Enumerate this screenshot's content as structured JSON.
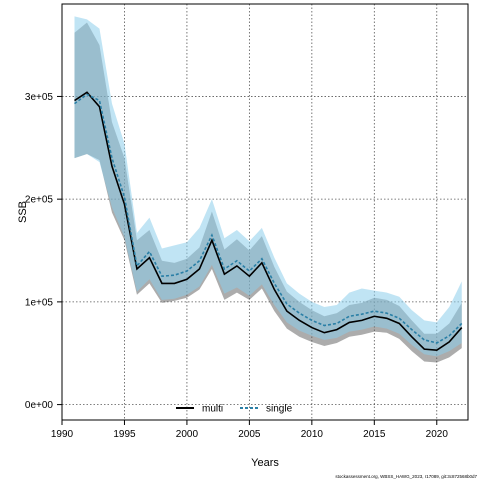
{
  "chart_data": {
    "type": "line",
    "xlabel": "Years",
    "ylabel": "SSB",
    "xlim": [
      1990,
      2022.5
    ],
    "ylim": [
      -15000,
      390000
    ],
    "x_ticks": [
      1990,
      1995,
      2000,
      2005,
      2010,
      2015,
      2020
    ],
    "y_ticks": [
      0,
      100000,
      200000,
      300000
    ],
    "y_tick_labels": [
      "0e+00",
      "1e+05",
      "2e+05",
      "3e+05"
    ],
    "grid": true,
    "legend_position": "bottom-center",
    "source": "stockassessment.org, WBSS_HAWG_2023, r17089, git:3c872568b0d7",
    "x": [
      1991,
      1992,
      1993,
      1994,
      1995,
      1996,
      1997,
      1998,
      1999,
      2000,
      2001,
      2002,
      2003,
      2004,
      2005,
      2006,
      2007,
      2008,
      2009,
      2010,
      2011,
      2012,
      2013,
      2014,
      2015,
      2016,
      2017,
      2018,
      2019,
      2020,
      2021,
      2022
    ],
    "series": [
      {
        "name": "multi",
        "color": "#000000",
        "band_color": "#5a5a5a",
        "values": [
          296000,
          304000,
          290000,
          232000,
          195000,
          132000,
          143000,
          118000,
          118000,
          122000,
          132000,
          160000,
          127000,
          135000,
          125000,
          138000,
          112000,
          91000,
          82000,
          75000,
          70000,
          73000,
          80000,
          82000,
          86000,
          84000,
          79000,
          66000,
          54000,
          53000,
          61000,
          75000
        ],
        "lower": [
          240000,
          244000,
          238000,
          187000,
          160000,
          107000,
          118000,
          99000,
          101000,
          104000,
          112000,
          132000,
          102000,
          109000,
          102000,
          113000,
          91000,
          74000,
          66000,
          61000,
          57000,
          60000,
          66000,
          68000,
          71000,
          70000,
          64000,
          52000,
          42000,
          41000,
          46000,
          55000
        ],
        "upper": [
          362000,
          372000,
          350000,
          275000,
          240000,
          160000,
          170000,
          140000,
          138000,
          142000,
          153000,
          188000,
          151000,
          161000,
          150000,
          164000,
          134000,
          110000,
          100000,
          92000,
          86000,
          89000,
          97000,
          99000,
          104000,
          102000,
          96000,
          82000,
          69000,
          69000,
          79000,
          99000
        ]
      },
      {
        "name": "single",
        "color": "#2a7fa6",
        "band_color": "#8ccdeb",
        "values": [
          293000,
          302000,
          296000,
          240000,
          202000,
          135000,
          149000,
          125000,
          126000,
          130000,
          140000,
          165000,
          132000,
          140000,
          130000,
          142000,
          118000,
          98000,
          89000,
          82000,
          77000,
          79000,
          86000,
          88000,
          91000,
          89000,
          84000,
          73000,
          63000,
          60000,
          67000,
          79000
        ],
        "lower": [
          240000,
          244000,
          236000,
          192000,
          163000,
          110000,
          122000,
          102000,
          103000,
          107000,
          115000,
          136000,
          108000,
          114000,
          106000,
          117000,
          97000,
          80000,
          72000,
          67000,
          63000,
          65000,
          71000,
          73000,
          76000,
          74000,
          69000,
          58000,
          49000,
          47000,
          52000,
          60000
        ],
        "upper": [
          378000,
          375000,
          366000,
          293000,
          254000,
          167000,
          182000,
          152000,
          155000,
          158000,
          172000,
          200000,
          162000,
          170000,
          159000,
          172000,
          143000,
          118000,
          108000,
          100000,
          95000,
          97000,
          109000,
          113000,
          111000,
          109000,
          105000,
          92000,
          82000,
          80000,
          95000,
          120000
        ]
      }
    ]
  }
}
